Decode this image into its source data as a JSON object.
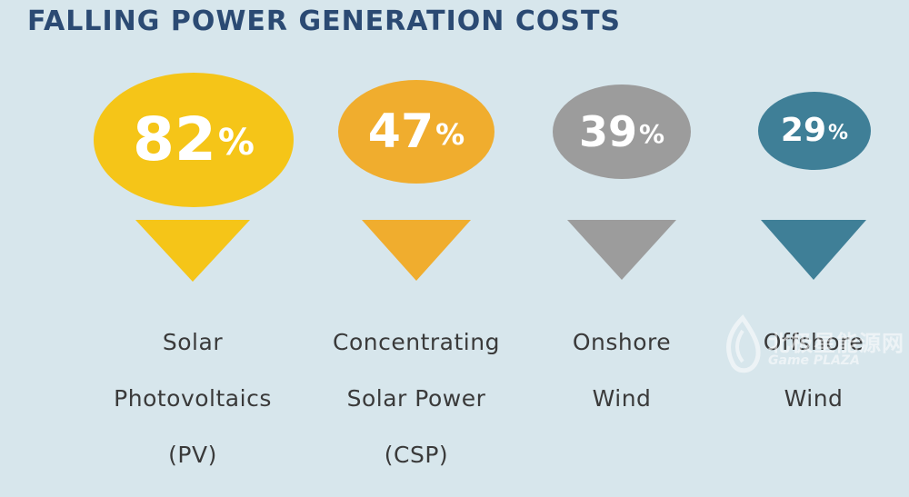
{
  "title": "FALLING POWER GENERATION COSTS",
  "items": [
    {
      "value": "82",
      "unit": "%",
      "label_lines": [
        "Solar",
        "Photovoltaics",
        "(PV)"
      ],
      "color": "#f5c518"
    },
    {
      "value": "47",
      "unit": "%",
      "label_lines": [
        "Concentrating",
        "Solar Power",
        "(CSP)"
      ],
      "color": "#f0ad2e"
    },
    {
      "value": "39",
      "unit": "%",
      "label_lines": [
        "Onshore",
        "Wind"
      ],
      "color": "#9c9c9c"
    },
    {
      "value": "29",
      "unit": "%",
      "label_lines": [
        "Offshore",
        "Wind"
      ],
      "color": "#3f7f97"
    }
  ],
  "watermark": {
    "text": "北极星能源网",
    "subtext": "Game PLAZA"
  },
  "background_color": "#d7e6ec",
  "title_color": "#2b4a73",
  "label_color": "#3a3a3a"
}
